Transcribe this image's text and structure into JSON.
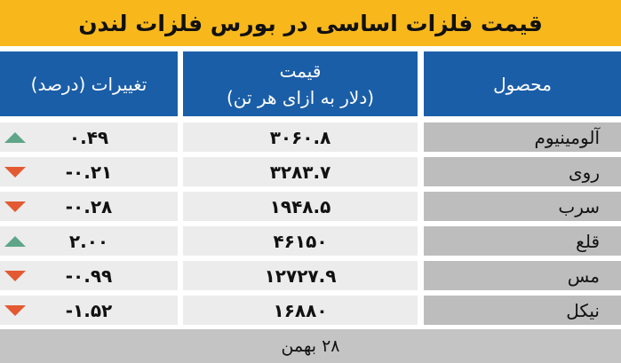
{
  "title": "قیمت فلزات اساسی در بورس فلزات لندن",
  "headers": {
    "change": "تغییرات (درصد)",
    "price_line1": "قیمت",
    "price_line2": "(دلار به ازای هر تن)",
    "product": "محصول"
  },
  "rows": [
    {
      "product": "آلومینیوم",
      "price": "۳۰۶۰.۸",
      "change": "۰.۴۹",
      "trend": "up"
    },
    {
      "product": "روی",
      "price": "۳۲۸۳.۷",
      "change": "-۰.۲۱",
      "trend": "down"
    },
    {
      "product": "سرب",
      "price": "۱۹۴۸.۵",
      "change": "-۰.۲۸",
      "trend": "down"
    },
    {
      "product": "قلع",
      "price": "۴۶۱۵۰",
      "change": "۲.۰۰",
      "trend": "up"
    },
    {
      "product": "مس",
      "price": "۱۲۷۲۷.۹",
      "change": "-۰.۹۹",
      "trend": "down"
    },
    {
      "product": "نیکل",
      "price": "۱۶۸۸۰",
      "change": "-۱.۵۲",
      "trend": "down"
    }
  ],
  "footer": "۲۸ بهمن",
  "colors": {
    "title_bg": "#f8b81c",
    "header_bg": "#1b5ea8",
    "up": "#5ea58a",
    "down": "#e35a32"
  }
}
